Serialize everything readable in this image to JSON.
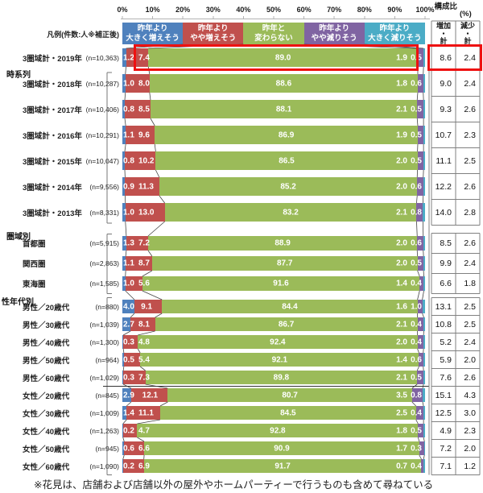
{
  "header": {
    "composition_label": "構成比",
    "percent_label": "(%)",
    "axis_ticks": [
      "0%",
      "10%",
      "20%",
      "30%",
      "40%",
      "50%",
      "60%",
      "70%",
      "80%",
      "90%",
      "100%"
    ],
    "value_columns": [
      {
        "id": "increase",
        "lines": [
          "増加",
          "・",
          "計"
        ]
      },
      {
        "id": "decrease",
        "lines": [
          "減少",
          "・",
          "計"
        ]
      }
    ]
  },
  "legend": {
    "label": "凡例(件数:人※補正後)",
    "items": [
      {
        "name": "昨年より大きく増えそう",
        "lines": [
          "昨年より",
          "大きく増えそう"
        ],
        "color": "#4F81BD"
      },
      {
        "name": "昨年よりやや増えそう",
        "lines": [
          "昨年より",
          "やや増えそう"
        ],
        "color": "#C0504D"
      },
      {
        "name": "昨年と変わらない",
        "lines": [
          "昨年と",
          "変わらない"
        ],
        "color": "#9BBB59"
      },
      {
        "name": "昨年よりやや減りそう",
        "lines": [
          "昨年より",
          "やや減りそう"
        ],
        "color": "#8064A2"
      },
      {
        "name": "昨年より大きく減りそう",
        "lines": [
          "昨年より",
          "大きく減りそう"
        ],
        "color": "#4BACC6"
      }
    ]
  },
  "chart_data": {
    "type": "bar",
    "orientation": "horizontal-stacked",
    "xlim": [
      0,
      100
    ],
    "unit": "%",
    "series": [
      "昨年より大きく増えそう",
      "昨年よりやや増えそう",
      "昨年と変わらない",
      "昨年よりやや減りそう",
      "昨年より大きく減りそう"
    ],
    "groups": [
      {
        "name": "時系列",
        "rows": [
          {
            "label": "3圏域計・2019年",
            "n": "(n=10,363)",
            "values": [
              1.2,
              7.4,
              89.0,
              1.9,
              0.5
            ],
            "increase": 8.6,
            "decrease": 2.4,
            "highlight": true
          },
          {
            "label": "3圏域計・2018年",
            "n": "(n=10,287)",
            "values": [
              1.0,
              8.0,
              88.6,
              1.8,
              0.6
            ],
            "increase": 9.0,
            "decrease": 2.4
          },
          {
            "label": "3圏域計・2017年",
            "n": "(n=10,406)",
            "values": [
              0.8,
              8.5,
              88.1,
              2.1,
              0.5
            ],
            "increase": 9.3,
            "decrease": 2.6
          },
          {
            "label": "3圏域計・2016年",
            "n": "(n=10,291)",
            "values": [
              1.1,
              9.6,
              86.9,
              1.9,
              0.5
            ],
            "increase": 10.7,
            "decrease": 2.3
          },
          {
            "label": "3圏域計・2015年",
            "n": "(n=10,047)",
            "values": [
              0.8,
              10.2,
              86.5,
              2.0,
              0.5
            ],
            "increase": 11.1,
            "decrease": 2.5
          },
          {
            "label": "3圏域計・2014年",
            "n": "(n=9,556)",
            "values": [
              0.9,
              11.3,
              85.2,
              2.0,
              0.6
            ],
            "increase": 12.2,
            "decrease": 2.6
          },
          {
            "label": "3圏域計・2013年",
            "n": "(n=8,331)",
            "values": [
              1.0,
              13.0,
              83.2,
              2.1,
              0.8
            ],
            "increase": 14.0,
            "decrease": 2.8
          }
        ]
      },
      {
        "name": "圏域別",
        "rows": [
          {
            "label": "首都圏",
            "n": "(n=5,915)",
            "values": [
              1.3,
              7.2,
              88.9,
              2.0,
              0.6
            ],
            "increase": 8.5,
            "decrease": 2.6
          },
          {
            "label": "関西圏",
            "n": "(n=2,863)",
            "values": [
              1.1,
              8.7,
              87.7,
              2.0,
              0.5
            ],
            "increase": 9.9,
            "decrease": 2.4
          },
          {
            "label": "東海圏",
            "n": "(n=1,585)",
            "values": [
              1.0,
              5.6,
              91.6,
              1.4,
              0.4
            ],
            "increase": 6.6,
            "decrease": 1.8
          }
        ]
      },
      {
        "name": "性年代別",
        "separator_after_index": 4,
        "rows": [
          {
            "label": "男性／20歳代",
            "n": "(n=880)",
            "values": [
              4.0,
              9.1,
              84.4,
              1.6,
              1.0
            ],
            "increase": 13.1,
            "decrease": 2.5
          },
          {
            "label": "男性／30歳代",
            "n": "(n=1,039)",
            "values": [
              2.7,
              8.1,
              86.7,
              2.1,
              0.4
            ],
            "increase": 10.8,
            "decrease": 2.5
          },
          {
            "label": "男性／40歳代",
            "n": "(n=1,300)",
            "values": [
              0.3,
              4.8,
              92.4,
              2.0,
              0.4
            ],
            "increase": 5.2,
            "decrease": 2.4
          },
          {
            "label": "男性／50歳代",
            "n": "(n=964)",
            "values": [
              0.5,
              5.4,
              92.1,
              1.4,
              0.6
            ],
            "increase": 5.9,
            "decrease": 2.0
          },
          {
            "label": "男性／60歳代",
            "n": "(n=1,029)",
            "values": [
              0.3,
              7.3,
              89.8,
              2.1,
              0.5
            ],
            "increase": 7.6,
            "decrease": 2.6
          },
          {
            "label": "女性／20歳代",
            "n": "(n=845)",
            "values": [
              2.9,
              12.1,
              80.7,
              3.5,
              0.8
            ],
            "increase": 15.1,
            "decrease": 4.3
          },
          {
            "label": "女性／30歳代",
            "n": "(n=1,009)",
            "values": [
              1.4,
              11.1,
              84.5,
              2.5,
              0.4
            ],
            "increase": 12.5,
            "decrease": 3.0
          },
          {
            "label": "女性／40歳代",
            "n": "(n=1,263)",
            "values": [
              0.2,
              4.7,
              92.8,
              1.8,
              0.5
            ],
            "increase": 4.9,
            "decrease": 2.3
          },
          {
            "label": "女性／50歳代",
            "n": "(n=945)",
            "values": [
              0.6,
              6.6,
              90.9,
              1.7,
              0.3
            ],
            "increase": 7.2,
            "decrease": 2.0
          },
          {
            "label": "女性／60歳代",
            "n": "(n=1,090)",
            "values": [
              0.2,
              6.9,
              91.7,
              0.7,
              0.4
            ],
            "increase": 7.1,
            "decrease": 1.2
          }
        ]
      }
    ]
  },
  "highlight_color": "#EE1111",
  "footer": {
    "note": "※花見は、店舗および店舗以外の屋外やホームパーティーで行うものも含めて尋ねている"
  }
}
